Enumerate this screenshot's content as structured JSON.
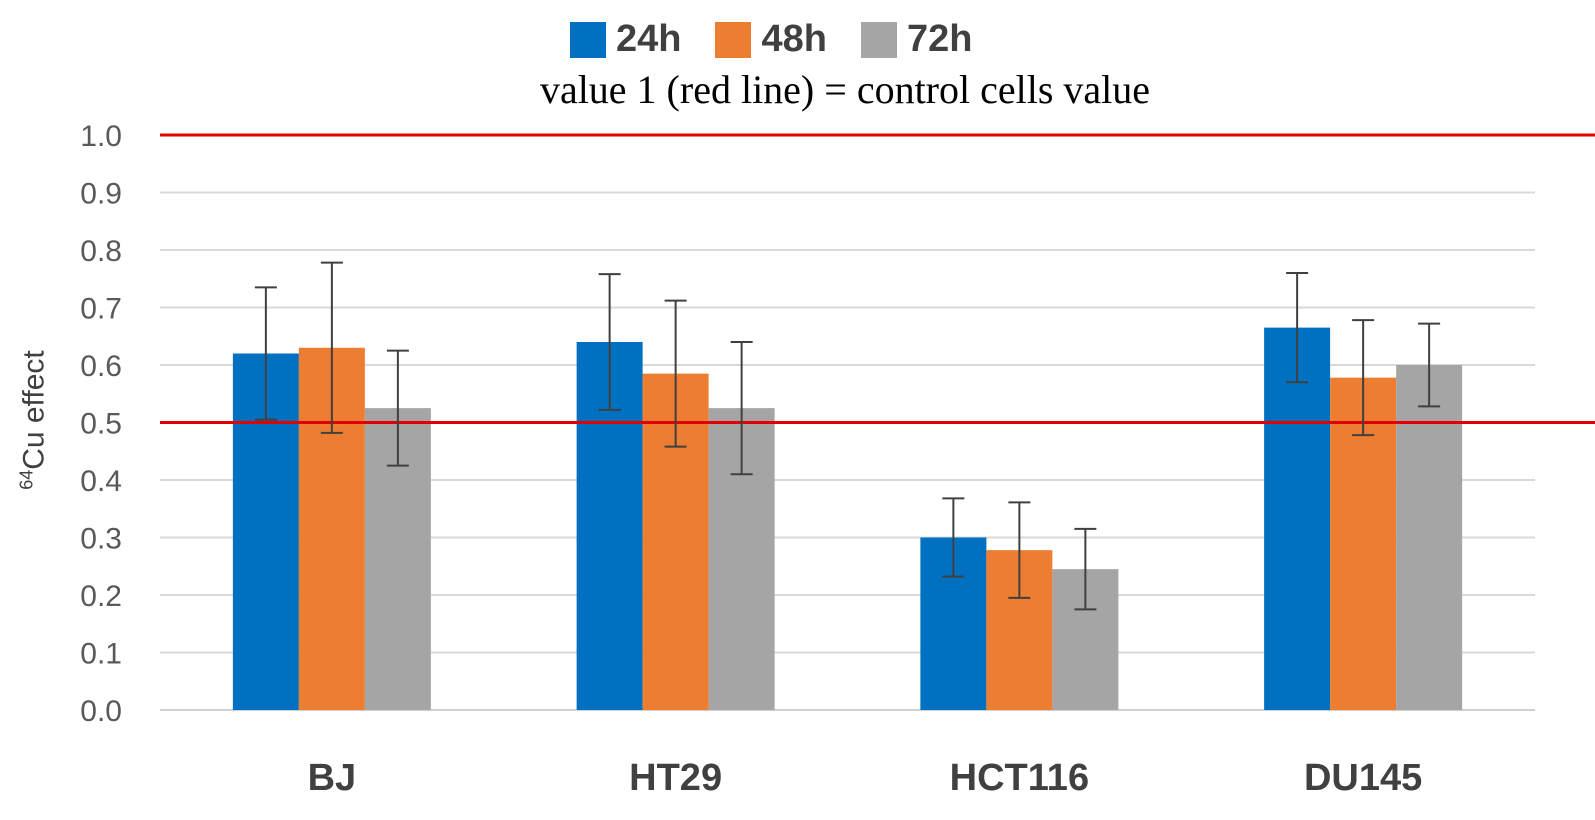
{
  "colors": {
    "grid": "#d9d9d9",
    "axis": "#d0d0d0",
    "refline": "#e00000",
    "errorbar": "#404040",
    "tick_text": "#595959",
    "category_text": "#404040"
  },
  "chart_data": {
    "type": "bar",
    "title": "",
    "subtitle": "value 1 (red line) = control cells value",
    "xlabel": "",
    "ylabel": "Cu effect",
    "ylabel_superscript": "64",
    "ylim": [
      0,
      1.0
    ],
    "yticks": [
      "0.0",
      "0.1",
      "0.2",
      "0.3",
      "0.4",
      "0.5",
      "0.6",
      "0.7",
      "0.8",
      "0.9",
      "1.0"
    ],
    "categories": [
      "BJ",
      "HT29",
      "HCT116",
      "DU145"
    ],
    "series": [
      {
        "name": "24h",
        "color": "#0070c0",
        "values": [
          0.62,
          0.64,
          0.3,
          0.665
        ],
        "errors": [
          0.115,
          0.118,
          0.068,
          0.095
        ]
      },
      {
        "name": "48h",
        "color": "#ed7d31",
        "values": [
          0.63,
          0.585,
          0.278,
          0.578
        ],
        "errors": [
          0.148,
          0.127,
          0.083,
          0.1
        ]
      },
      {
        "name": "72h",
        "color": "#a5a5a5",
        "values": [
          0.525,
          0.525,
          0.245,
          0.6
        ],
        "errors": [
          0.1,
          0.115,
          0.07,
          0.072
        ]
      }
    ],
    "reference_lines": [
      1.0,
      0.5
    ],
    "grid": true,
    "legend_position": "top-center"
  }
}
